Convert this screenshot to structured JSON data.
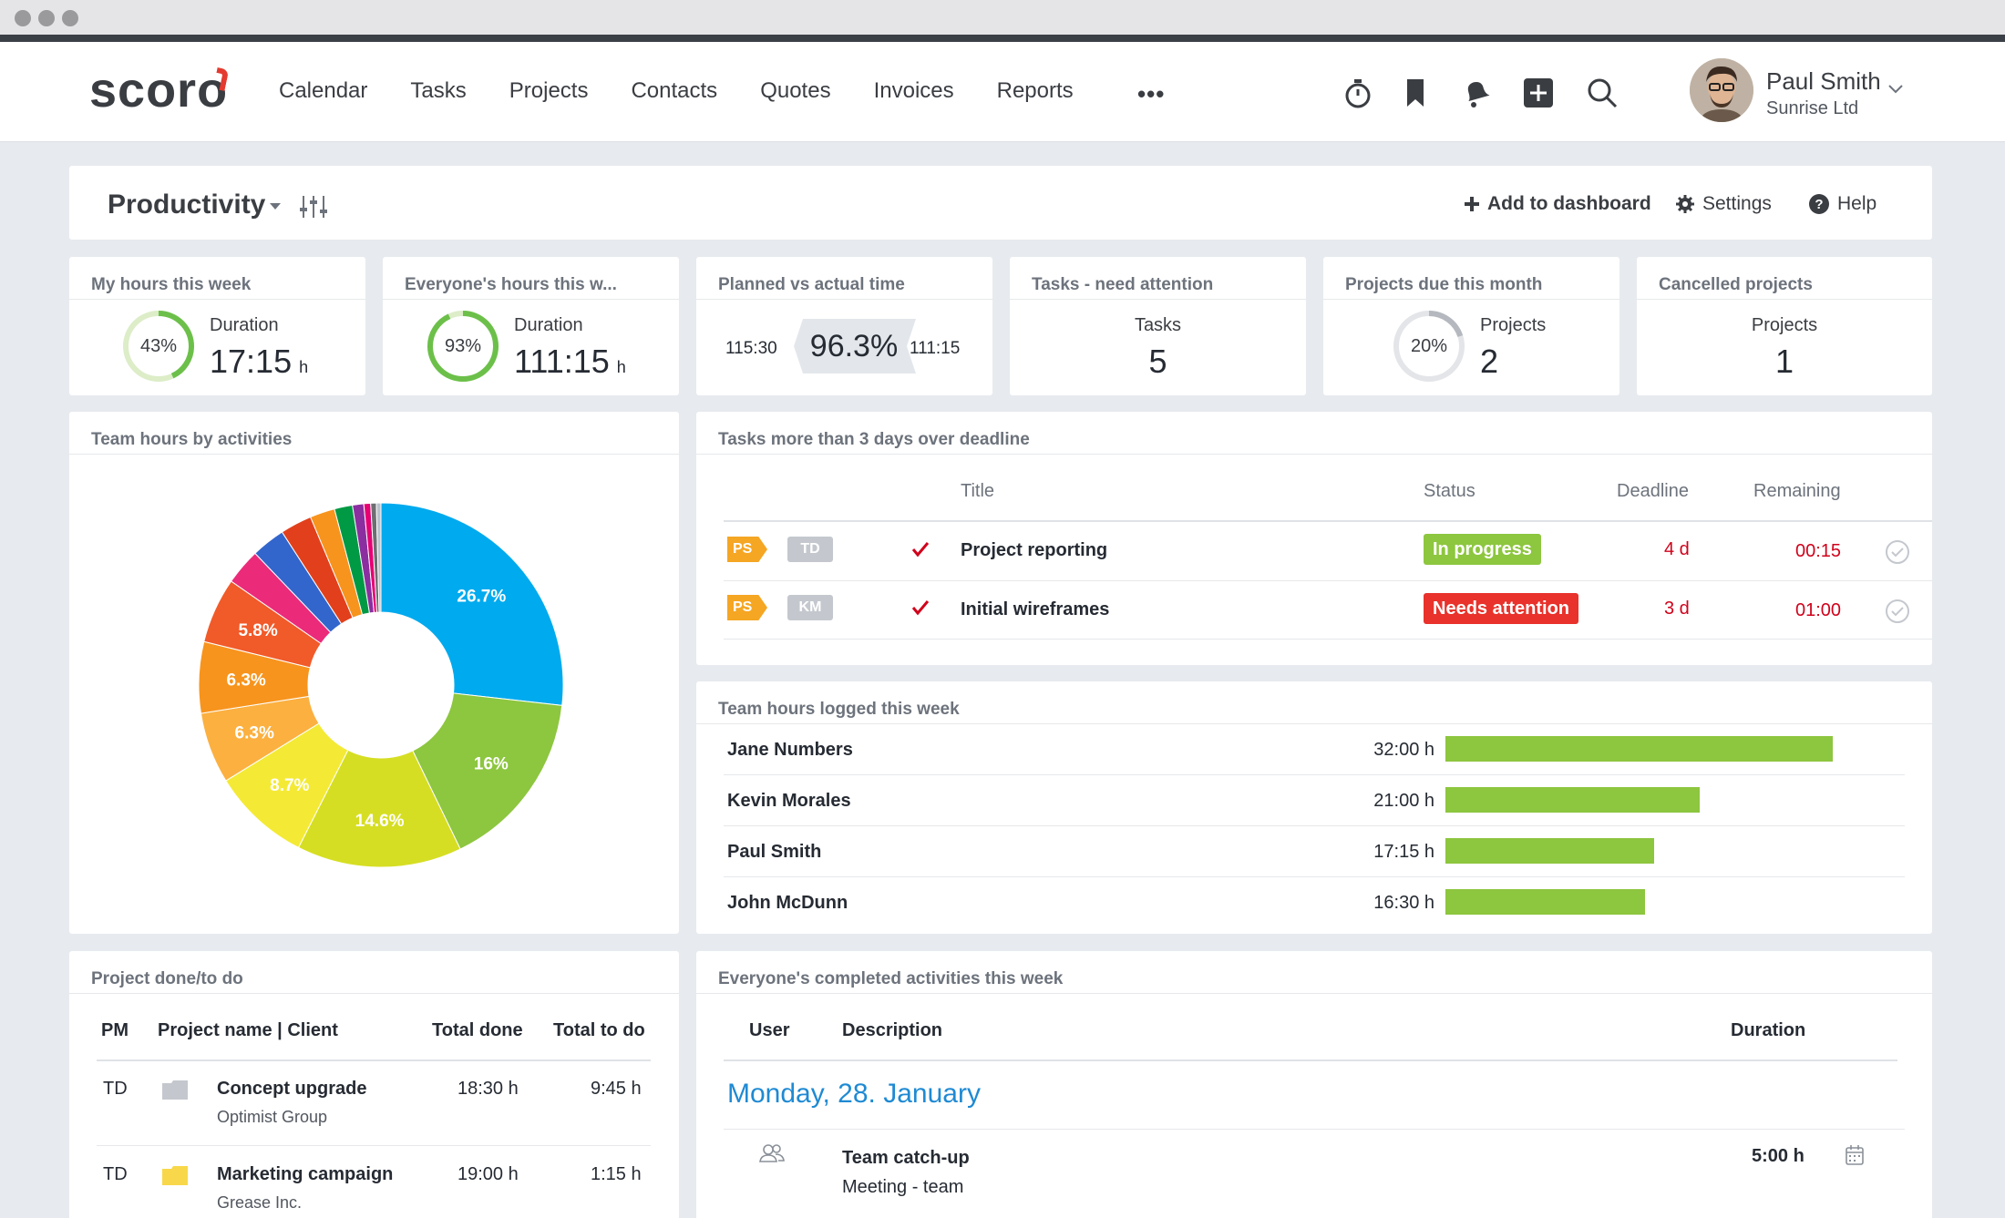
{
  "nav": {
    "logo": "scoro",
    "items": [
      "Calendar",
      "Tasks",
      "Projects",
      "Contacts",
      "Quotes",
      "Invoices",
      "Reports"
    ],
    "more": "•••",
    "icons": [
      "timer-icon",
      "bookmark-icon",
      "bell-icon",
      "plus-square-icon",
      "search-icon"
    ],
    "user": {
      "name": "Paul Smith",
      "company": "Sunrise Ltd"
    }
  },
  "dashboard": {
    "title": "Productivity",
    "actions": {
      "add": "Add to dashboard",
      "settings": "Settings",
      "help": "Help"
    }
  },
  "kpis": {
    "my_hours": {
      "title": "My hours this week",
      "percent": 43,
      "percent_label": "43%",
      "label": "Duration",
      "value": "17:15",
      "unit": "h"
    },
    "everyone_hours": {
      "title": "Everyone's hours this w...",
      "percent": 93,
      "percent_label": "93%",
      "label": "Duration",
      "value": "111:15",
      "unit": "h"
    },
    "planned_actual": {
      "title": "Planned vs actual time",
      "planned": "115:30",
      "percent": "96.3%",
      "actual": "111:15"
    },
    "tasks_attention": {
      "title": "Tasks - need attention",
      "label": "Tasks",
      "value": "5"
    },
    "projects_due": {
      "title": "Projects due this month",
      "percent": 20,
      "percent_label": "20%",
      "label": "Projects",
      "value": "2"
    },
    "cancelled": {
      "title": "Cancelled projects",
      "label": "Projects",
      "value": "1"
    }
  },
  "team_activities": {
    "title": "Team hours by activities"
  },
  "chart_data": {
    "type": "pie",
    "title": "",
    "donut": true,
    "slices": [
      {
        "value": 26.7,
        "label": "26.7%",
        "color": "#00aaee"
      },
      {
        "value": 16.0,
        "label": "16%",
        "color": "#8dc63f"
      },
      {
        "value": 14.6,
        "label": "14.6%",
        "color": "#d6de23"
      },
      {
        "value": 8.7,
        "label": "8.7%",
        "color": "#f4ea35"
      },
      {
        "value": 6.3,
        "label": "6.3%",
        "color": "#fbb040"
      },
      {
        "value": 6.3,
        "label": "6.3%",
        "color": "#f7941d"
      },
      {
        "value": 5.8,
        "label": "5.8%",
        "color": "#f15a29"
      },
      {
        "value": 3.2,
        "label": "",
        "color": "#ec2a7a"
      },
      {
        "value": 3.0,
        "label": "",
        "color": "#3366cc"
      },
      {
        "value": 2.8,
        "label": "",
        "color": "#e2401c"
      },
      {
        "value": 2.2,
        "label": "",
        "color": "#f7941d"
      },
      {
        "value": 1.6,
        "label": "",
        "color": "#009944"
      },
      {
        "value": 1.0,
        "label": "",
        "color": "#8b2ea0"
      },
      {
        "value": 0.6,
        "label": "",
        "color": "#e60073"
      },
      {
        "value": 0.5,
        "label": "",
        "color": "#6d6e71"
      },
      {
        "value": 0.4,
        "label": "",
        "color": "#b9c2cc"
      }
    ]
  },
  "overdue": {
    "title": "Tasks more than 3 days over deadline",
    "headers": {
      "title": "Title",
      "status": "Status",
      "deadline": "Deadline",
      "remaining": "Remaining"
    },
    "rows": [
      {
        "project_tag": "PS",
        "user_tag": "TD",
        "title": "Project reporting",
        "status": "In progress",
        "status_color": "#8dc63f",
        "deadline": "4 d",
        "remaining": "00:15"
      },
      {
        "project_tag": "PS",
        "user_tag": "KM",
        "title": "Initial wireframes",
        "status": "Needs attention",
        "status_color": "#e8322b",
        "deadline": "3 d",
        "remaining": "01:00"
      }
    ]
  },
  "team_hours": {
    "title": "Team hours logged this week",
    "max_hours": 32,
    "rows": [
      {
        "name": "Jane Numbers",
        "value": "32:00 h",
        "hours": 32.0
      },
      {
        "name": "Kevin Morales",
        "value": "21:00 h",
        "hours": 21.0
      },
      {
        "name": "Paul Smith",
        "value": "17:15 h",
        "hours": 17.25
      },
      {
        "name": "John McDunn",
        "value": "16:30 h",
        "hours": 16.5
      }
    ]
  },
  "projects": {
    "title": "Project done/to do",
    "headers": {
      "pm": "PM",
      "name": "Project name | Client",
      "done": "Total done",
      "todo": "Total to do"
    },
    "rows": [
      {
        "pm": "TD",
        "name": "Concept upgrade",
        "client": "Optimist Group",
        "done": "18:30 h",
        "todo": "9:45 h",
        "folder_color": "#c4c8ce"
      },
      {
        "pm": "TD",
        "name": "Marketing campaign",
        "client": "Grease Inc.",
        "done": "19:00 h",
        "todo": "1:15 h",
        "folder_color": "#f8d84a"
      }
    ]
  },
  "completed": {
    "title": "Everyone's completed activities this week",
    "headers": {
      "user": "User",
      "description": "Description",
      "duration": "Duration"
    },
    "date": "Monday, 28. January",
    "rows": [
      {
        "title": "Team catch-up",
        "type": "Meeting - team",
        "duration": "5:00 h"
      }
    ]
  }
}
